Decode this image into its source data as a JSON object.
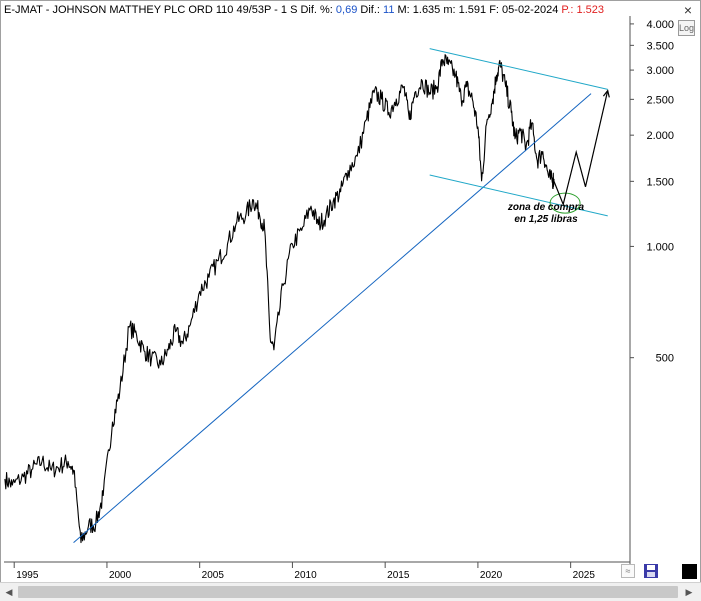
{
  "header": {
    "prefix": "E-JMAT - JOHNSON MATTHEY PLC ORD 110 49/53P -  1 S  Dif. %: ",
    "dif_pct": "0,69",
    "dif_label": "  Dif.: ",
    "dif": "11",
    "mid": "  M: 1.635  m: 1.591  F: 05-02-2024  ",
    "p_value": "P.: 1.523"
  },
  "controls": {
    "log_label": "Log",
    "close_glyph": "×",
    "zoom_glyph": "≈",
    "scroll_left_glyph": "◀",
    "scroll_right_glyph": "▶"
  },
  "colors": {
    "price": "#000000",
    "trend": "#1565c0",
    "channel": "#21a8c8",
    "ellipse": "#2ea02e",
    "text": "#000000",
    "axis": "#505050",
    "header_blue": "#1a52c8",
    "header_red": "#e02020"
  },
  "icons": {
    "close": "close-icon",
    "log": "log-scale-toggle",
    "zoom": "zoom-icon",
    "save": "save-icon",
    "dark": "dark-mode-icon"
  },
  "chart_data": {
    "type": "line",
    "title": "E-JMAT - JOHNSON MATTHEY PLC ORD 110 49/53P",
    "y_scale": "log",
    "y_range": [
      140,
      4150
    ],
    "x_range": [
      1994.45,
      2028.2
    ],
    "y_ticks": [
      {
        "value": 4000,
        "label": "4.000"
      },
      {
        "value": 3500,
        "label": "3.500"
      },
      {
        "value": 3000,
        "label": "3.000"
      },
      {
        "value": 2500,
        "label": "2.500"
      },
      {
        "value": 2000,
        "label": "2.000"
      },
      {
        "value": 1500,
        "label": "1.500"
      },
      {
        "value": 1000,
        "label": "1.000"
      },
      {
        "value": 500,
        "label": "500"
      }
    ],
    "x_ticks": [
      {
        "value": 1995,
        "label": "1995"
      },
      {
        "value": 2000,
        "label": "2000"
      },
      {
        "value": 2005,
        "label": "2005"
      },
      {
        "value": 2010,
        "label": "2010"
      },
      {
        "value": 2015,
        "label": "2015"
      },
      {
        "value": 2020,
        "label": "2020"
      },
      {
        "value": 2025,
        "label": "2025"
      }
    ],
    "price_series": {
      "x": [
        1994.5,
        1994.9,
        1995.5,
        1996.0,
        1996.5,
        1997.0,
        1997.5,
        1997.9,
        1998.2,
        1998.6,
        1999.0,
        1999.4,
        1999.8,
        2000.3,
        2000.7,
        2001.2,
        2001.6,
        2002.0,
        2002.4,
        2002.9,
        2003.3,
        2003.7,
        2004.1,
        2004.5,
        2005.0,
        2005.5,
        2006.0,
        2006.5,
        2007.0,
        2007.5,
        2007.9,
        2008.2,
        2008.5,
        2008.8,
        2009.0,
        2009.5,
        2010.0,
        2010.5,
        2011.0,
        2011.4,
        2011.8,
        2012.2,
        2012.6,
        2013.0,
        2013.5,
        2014.0,
        2014.4,
        2014.8,
        2015.2,
        2015.6,
        2016.0,
        2016.3,
        2016.6,
        2017.0,
        2017.4,
        2017.8,
        2018.1,
        2018.4,
        2018.8,
        2019.1,
        2019.4,
        2019.7,
        2020.0,
        2020.2,
        2020.5,
        2020.8,
        2021.0,
        2021.2,
        2021.5,
        2021.8,
        2022.0,
        2022.3,
        2022.6,
        2022.9,
        2023.2,
        2023.5,
        2023.8,
        2024.0,
        2024.1
      ],
      "y": [
        235,
        226,
        238,
        250,
        262,
        248,
        255,
        262,
        248,
        158,
        175,
        178,
        212,
        335,
        408,
        605,
        575,
        522,
        498,
        478,
        525,
        588,
        545,
        615,
        755,
        825,
        915,
        1015,
        1165,
        1225,
        1335,
        1235,
        1115,
        565,
        525,
        785,
        1015,
        1105,
        1285,
        1145,
        1205,
        1325,
        1405,
        1605,
        1755,
        2205,
        2605,
        2505,
        2305,
        2505,
        2705,
        2205,
        2605,
        2805,
        2605,
        2705,
        3205,
        3105,
        2905,
        2505,
        2705,
        2505,
        2105,
        1505,
        2205,
        2505,
        2905,
        3105,
        2705,
        2305,
        1955,
        2055,
        1855,
        2155,
        1705,
        1805,
        1555,
        1505,
        1523
      ]
    },
    "projection": {
      "x": [
        2024.05,
        2024.6,
        2025.3,
        2025.8,
        2027.0
      ],
      "y": [
        1523,
        1300,
        1800,
        1450,
        2640
      ]
    },
    "trendline": {
      "x": [
        1998.2,
        2026.1
      ],
      "y": [
        158,
        2590
      ]
    },
    "channel_upper": {
      "x": [
        2017.4,
        2027.0
      ],
      "y": [
        3430,
        2660
      ]
    },
    "channel_lower": {
      "x": [
        2017.4,
        2027.0
      ],
      "y": [
        1560,
        1210
      ]
    },
    "buy_zone": {
      "x": 2024.7,
      "y": 1310
    },
    "annotation": {
      "line1": "zona de compra",
      "line2": "en 1,25 libras"
    }
  }
}
